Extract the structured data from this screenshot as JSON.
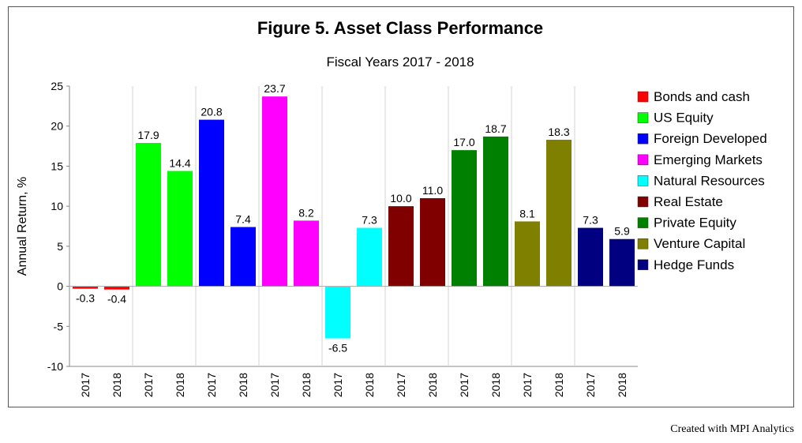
{
  "chart_data": {
    "type": "bar",
    "title": "Figure 5. Asset Class Performance",
    "subtitle": "Fiscal Years 2017 - 2018",
    "ylabel": "Annual Return, %",
    "ylim": [
      -10,
      25
    ],
    "yticks": [
      -10,
      -5,
      0,
      5,
      10,
      15,
      20,
      25
    ],
    "x_tick_labels": [
      "2017",
      "2018",
      "2017",
      "2018",
      "2017",
      "2018",
      "2017",
      "2018",
      "2017",
      "2018",
      "2017",
      "2018",
      "2017",
      "2018",
      "2017",
      "2018",
      "2017",
      "2018"
    ],
    "legend_position": "right",
    "grid": "vertical-separators",
    "series": [
      {
        "name": "Bonds and cash",
        "color": "#ff0000",
        "values": [
          -0.3,
          -0.4
        ],
        "labels": [
          "-0.3",
          "-0.4"
        ]
      },
      {
        "name": "US Equity",
        "color": "#00ff00",
        "values": [
          17.9,
          14.4
        ],
        "labels": [
          "17.9",
          "14.4"
        ]
      },
      {
        "name": "Foreign Developed",
        "color": "#0000ff",
        "values": [
          20.8,
          7.4
        ],
        "labels": [
          "20.8",
          "7.4"
        ]
      },
      {
        "name": "Emerging Markets",
        "color": "#ff00ff",
        "values": [
          23.7,
          8.2
        ],
        "labels": [
          "23.7",
          "8.2"
        ]
      },
      {
        "name": "Natural Resources",
        "color": "#00ffff",
        "values": [
          -6.5,
          7.3
        ],
        "labels": [
          "-6.5",
          "7.3"
        ]
      },
      {
        "name": "Real Estate",
        "color": "#800000",
        "values": [
          10.0,
          11.0
        ],
        "labels": [
          "10.0",
          "11.0"
        ]
      },
      {
        "name": "Private Equity",
        "color": "#008000",
        "values": [
          17.0,
          18.7
        ],
        "labels": [
          "17.0",
          "18.7"
        ]
      },
      {
        "name": "Venture Capital",
        "color": "#808000",
        "values": [
          8.1,
          18.3
        ],
        "labels": [
          "8.1",
          "18.3"
        ]
      },
      {
        "name": "Hedge Funds",
        "color": "#000080",
        "values": [
          7.3,
          5.9
        ],
        "labels": [
          "7.3",
          "5.9"
        ]
      }
    ]
  },
  "footer": {
    "credit": "Created with MPI Analytics"
  }
}
